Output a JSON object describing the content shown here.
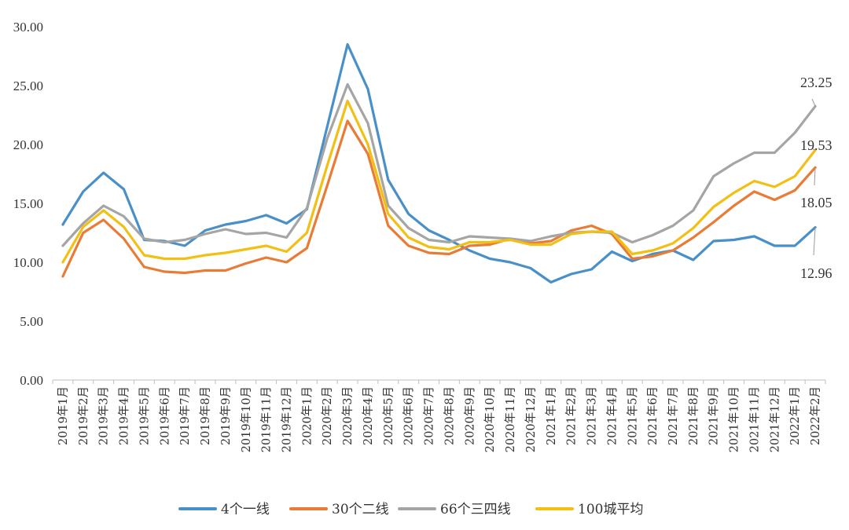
{
  "chart_data": {
    "type": "line",
    "title": "",
    "xlabel": "",
    "ylabel": "",
    "ylim": [
      0,
      30
    ],
    "yticks": [
      "0.00",
      "5.00",
      "10.00",
      "15.00",
      "20.00",
      "25.00",
      "30.00"
    ],
    "grid": false,
    "legend_position": "bottom",
    "categories": [
      "2019年1月",
      "2019年2月",
      "2019年3月",
      "2019年4月",
      "2019年5月",
      "2019年6月",
      "2019年7月",
      "2019年8月",
      "2019年9月",
      "2019年10月",
      "2019年11月",
      "2019年12月",
      "2020年1月",
      "2020年2月",
      "2020年3月",
      "2020年4月",
      "2020年5月",
      "2020年6月",
      "2020年7月",
      "2020年8月",
      "2020年9月",
      "2020年10月",
      "2020年11月",
      "2020年12月",
      "2021年1月",
      "2021年2月",
      "2021年3月",
      "2021年4月",
      "2021年5月",
      "2021年6月",
      "2021年7月",
      "2021年8月",
      "2021年9月",
      "2021年10月",
      "2021年11月",
      "2021年12月",
      "2022年1月",
      "2022年2月"
    ],
    "series": [
      {
        "name": "4个一线",
        "color": "#4a90c8",
        "values": [
          13.2,
          16.0,
          17.6,
          16.2,
          11.9,
          11.8,
          11.4,
          12.7,
          13.2,
          13.5,
          14.0,
          13.3,
          14.5,
          21.5,
          28.5,
          24.7,
          17.0,
          14.1,
          12.7,
          11.9,
          11.0,
          10.3,
          10.0,
          9.5,
          8.3,
          9.0,
          9.4,
          10.9,
          10.1,
          10.7,
          11.0,
          10.2,
          11.8,
          11.9,
          12.2,
          11.4,
          11.4,
          12.96
        ]
      },
      {
        "name": "30个二线",
        "color": "#e97b36",
        "values": [
          8.8,
          12.5,
          13.6,
          12.0,
          9.6,
          9.2,
          9.1,
          9.3,
          9.3,
          9.9,
          10.4,
          10.0,
          11.2,
          16.5,
          22.0,
          19.2,
          13.1,
          11.4,
          10.8,
          10.7,
          11.4,
          11.5,
          12.0,
          11.6,
          11.8,
          12.7,
          13.1,
          12.4,
          10.3,
          10.5,
          11.0,
          12.1,
          13.4,
          14.8,
          16.0,
          15.3,
          16.1,
          18.05
        ]
      },
      {
        "name": "66个三四线",
        "color": "#a5a5a5",
        "values": [
          11.4,
          13.3,
          14.8,
          13.9,
          12.0,
          11.7,
          11.9,
          12.4,
          12.8,
          12.4,
          12.5,
          12.1,
          14.6,
          20.5,
          25.1,
          21.8,
          14.8,
          12.9,
          11.9,
          11.7,
          12.2,
          12.1,
          12.0,
          11.8,
          12.2,
          12.5,
          12.6,
          12.5,
          11.7,
          12.3,
          13.1,
          14.4,
          17.3,
          18.4,
          19.3,
          19.3,
          21.0,
          23.25
        ]
      },
      {
        "name": "100城平均",
        "color": "#f2bf13",
        "values": [
          10.0,
          13.0,
          14.4,
          13.0,
          10.6,
          10.3,
          10.3,
          10.6,
          10.8,
          11.1,
          11.4,
          10.9,
          12.5,
          18.2,
          23.7,
          20.0,
          14.1,
          12.1,
          11.3,
          11.1,
          11.7,
          11.7,
          11.9,
          11.5,
          11.5,
          12.4,
          12.6,
          12.6,
          10.7,
          11.0,
          11.6,
          12.9,
          14.7,
          15.9,
          16.9,
          16.4,
          17.3,
          19.53
        ]
      }
    ],
    "annotations": [
      {
        "text": "23.25",
        "series": "66个三四线"
      },
      {
        "text": "19.53",
        "series": "100城平均"
      },
      {
        "text": "18.05",
        "series": "30个二线"
      },
      {
        "text": "12.96",
        "series": "4个一线"
      }
    ]
  }
}
